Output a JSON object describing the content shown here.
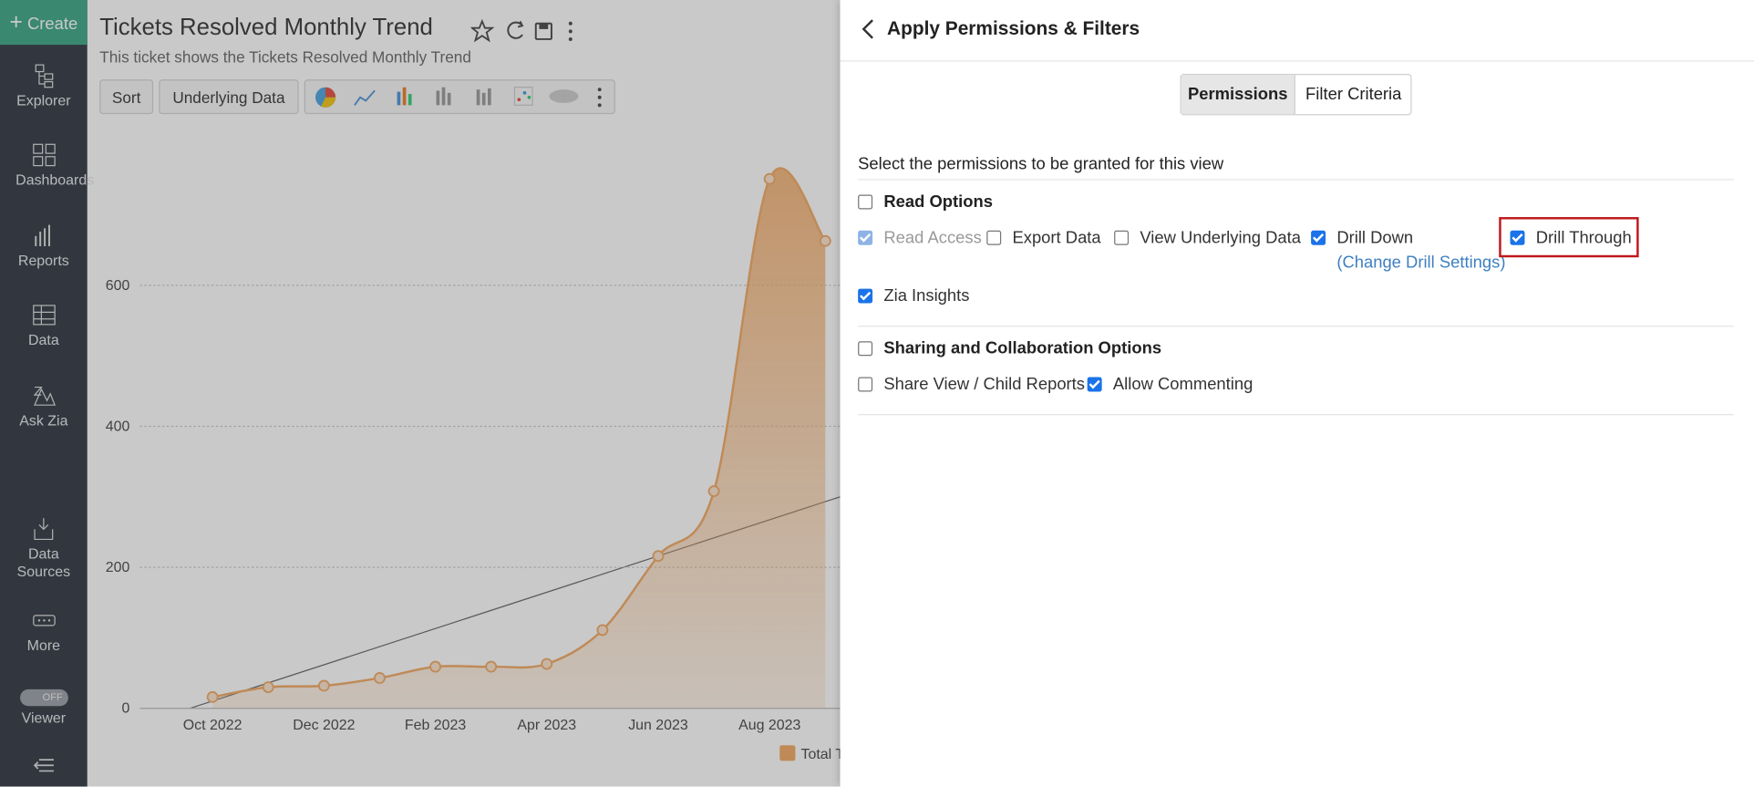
{
  "sidebar": {
    "create": "Create",
    "items": [
      "Explorer",
      "Dashboards",
      "Reports",
      "Data",
      "Ask Zia",
      "Data Sources",
      "More"
    ],
    "viewer_toggle": "OFF",
    "viewer": "Viewer"
  },
  "header": {
    "title": "Tickets Resolved Monthly Trend",
    "subtitle": "This ticket shows the Tickets Resolved Monthly Trend"
  },
  "toolbar": {
    "buttons": [
      "Sort",
      "Underlying Data"
    ]
  },
  "chart_data": {
    "type": "area",
    "categories": [
      "Oct 2022",
      null,
      "Dec 2022",
      null,
      "Feb 2023",
      null,
      "Apr 2023",
      null,
      "Jun 2023",
      null,
      "Aug 2023",
      null
    ],
    "series": [
      {
        "name": "Total T",
        "color": "#f2a862",
        "values": [
          16,
          30,
          32,
          43,
          59,
          59,
          63,
          111,
          216,
          308,
          751,
          663
        ]
      }
    ],
    "ylim": [
      0,
      800
    ],
    "yticks": [
      0,
      200,
      400,
      600
    ],
    "grid": true
  },
  "panel": {
    "title": "Apply Permissions & Filters",
    "tabs": [
      "Permissions",
      "Filter Criteria"
    ],
    "instruction": "Select the permissions to be granted for this view",
    "sections": [
      {
        "title": "Read Options",
        "checked": false,
        "options": [
          {
            "label": "Read Access",
            "checked": true,
            "disabled": true
          },
          {
            "label": "Export Data",
            "checked": false
          },
          {
            "label": "View Underlying Data",
            "checked": false
          },
          {
            "label": "Drill Down",
            "checked": true
          },
          {
            "label": "Drill Through",
            "checked": true
          },
          {
            "label": "Zia Insights",
            "checked": true
          }
        ]
      },
      {
        "title": "Sharing and Collaboration Options",
        "checked": false,
        "options": [
          {
            "label": "Share View / Child Reports",
            "checked": false
          },
          {
            "label": "Allow Commenting",
            "checked": true
          }
        ]
      }
    ],
    "drill_settings_link": "(Change Drill Settings)"
  }
}
